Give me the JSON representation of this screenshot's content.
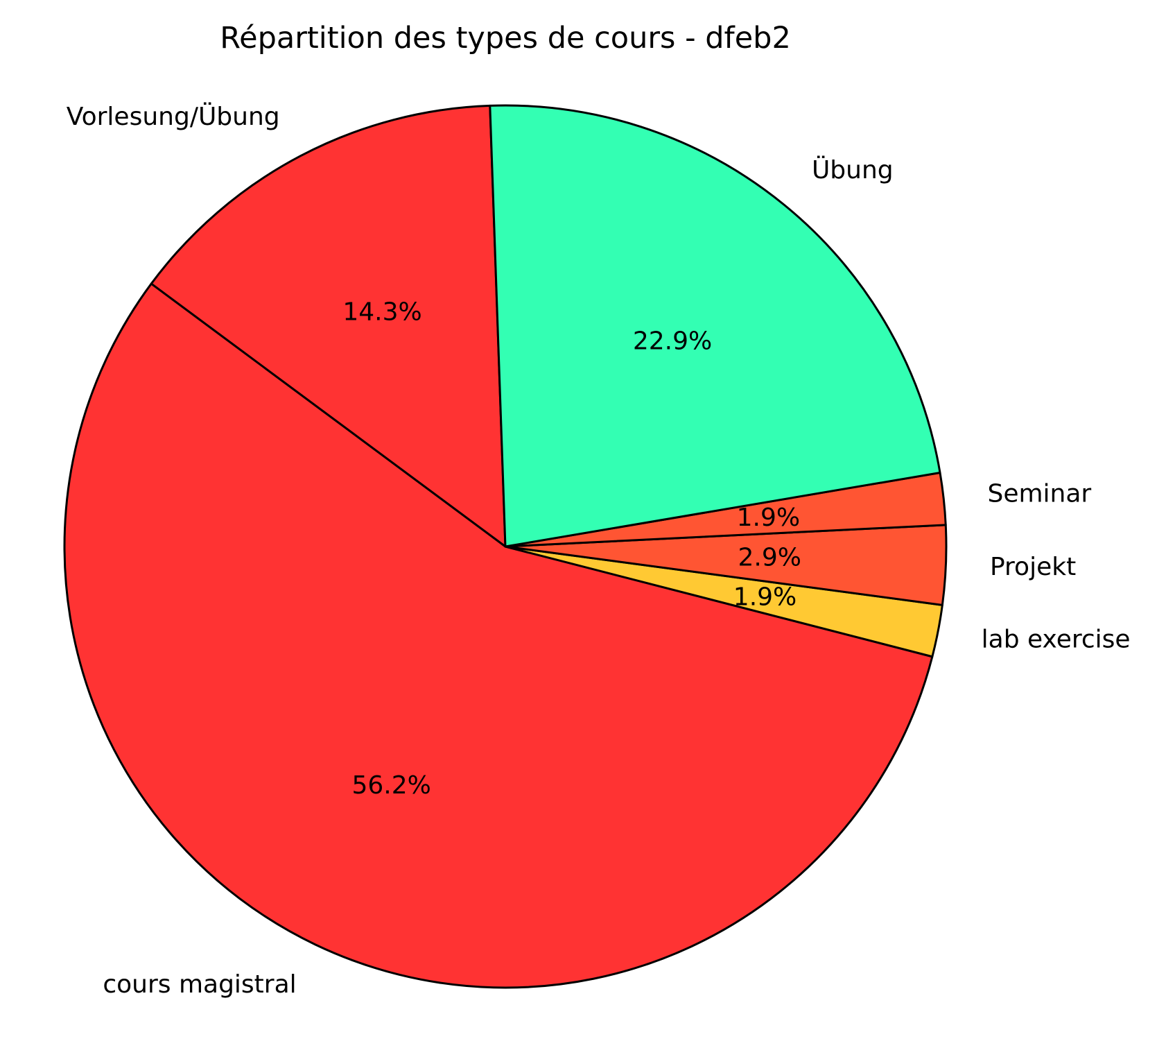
{
  "chart_data": {
    "type": "pie",
    "title": "Répartition des types de cours - dfeb2",
    "slices": [
      {
        "label": "Vorlesung/Übung",
        "value": 14.3,
        "pct_label": "14.3%",
        "color": "#ff3333"
      },
      {
        "label": "cours magistral",
        "value": 56.2,
        "pct_label": "56.2%",
        "color": "#ff3333"
      },
      {
        "label": "lab exercise",
        "value": 1.9,
        "pct_label": "1.9%",
        "color": "#ffc933"
      },
      {
        "label": "Projekt",
        "value": 2.9,
        "pct_label": "2.9%",
        "color": "#ff5533"
      },
      {
        "label": "Seminar",
        "value": 1.9,
        "pct_label": "1.9%",
        "color": "#ff5533"
      },
      {
        "label": "Übung",
        "value": 22.9,
        "pct_label": "22.9%",
        "color": "#33ffb3"
      }
    ],
    "edge_color": "#000000",
    "legend": "none"
  }
}
